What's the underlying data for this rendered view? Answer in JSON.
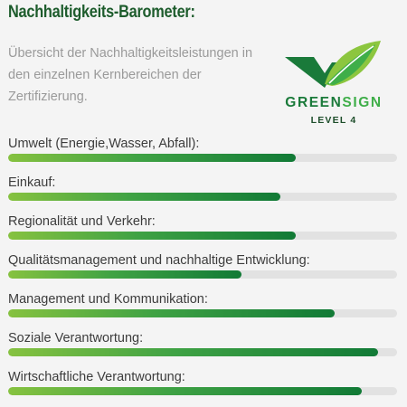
{
  "title": "Nachhaltigkeits-Barometer:",
  "intro": "Übersicht der Nachhaltigkeitsleistungen in den einzelnen Kernbereichen der Zertifizierung.",
  "logo": {
    "word_part1": "GREEN",
    "word_part2": "SIGN",
    "level": "LEVEL 4",
    "icon": "check-leaf-icon",
    "colors": {
      "dark": "#1a7a3a",
      "light": "#3fae49",
      "leaf_light": "#8cc63f"
    }
  },
  "bar_colors": {
    "start": "#86c240",
    "end": "#117a36",
    "track": "#e2e2e2"
  },
  "metrics": [
    {
      "label": "Umwelt (Energie,Wasser, Abfall):",
      "percent": 74
    },
    {
      "label": "Einkauf:",
      "percent": 70
    },
    {
      "label": "Regionalität und Verkehr:",
      "percent": 74
    },
    {
      "label": "Qualitätsmanagement und nachhaltige Entwicklung:",
      "percent": 60
    },
    {
      "label": "Management und Kommunikation:",
      "percent": 84
    },
    {
      "label": "Soziale Verantwortung:",
      "percent": 95
    },
    {
      "label": "Wirtschaftliche Verantwortung:",
      "percent": 91
    }
  ]
}
